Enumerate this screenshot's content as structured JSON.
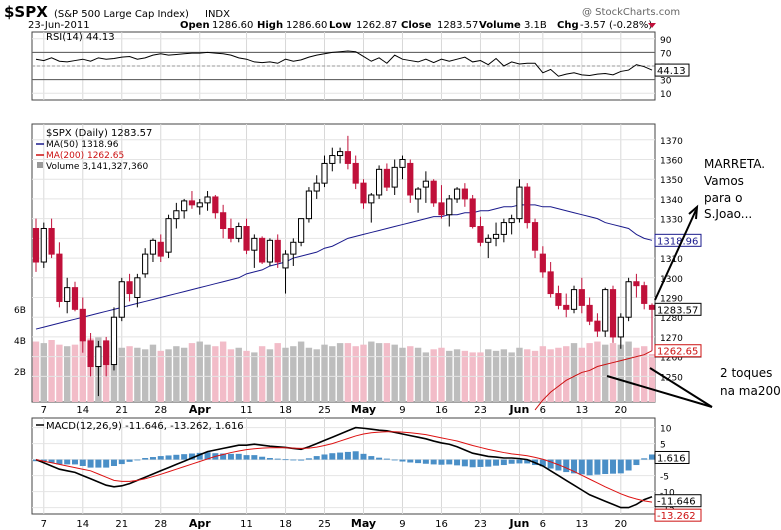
{
  "header": {
    "symbol": "$SPX",
    "name": "(S&P 500 Large Cap Index)",
    "exchange": "INDX",
    "date": "23-Jun-2011",
    "open_label": "Open",
    "open": "1286.60",
    "high_label": "High",
    "high": "1286.60",
    "low_label": "Low",
    "low": "1262.87",
    "close_label": "Close",
    "close": "1283.57",
    "volume_label": "Volume",
    "volume": "3.1B",
    "chg_label": "Chg",
    "chg": "-3.57 (-0.28%)",
    "watermark": "@ StockCharts.com"
  },
  "annotations": {
    "top_lines": [
      "MARRETA.",
      "Vamos",
      "para o",
      "S.Joao..."
    ],
    "bottom_lines": [
      "2 toques",
      "na ma200"
    ]
  },
  "chart_data": [
    {
      "type": "line",
      "panel": "rsi",
      "title": "RSI(14) 44.13",
      "ylim": [
        0,
        100
      ],
      "ticks": [
        10,
        30,
        50,
        70,
        90
      ],
      "ref_lines": [
        30,
        50,
        70
      ],
      "last_label": "44.13",
      "values": [
        60,
        58,
        62,
        57,
        56,
        58,
        60,
        57,
        62,
        60,
        61,
        63,
        64,
        60,
        62,
        66,
        68,
        66,
        67,
        68,
        69,
        69,
        70,
        69,
        68,
        66,
        62,
        60,
        56,
        55,
        56,
        54,
        60,
        57,
        59,
        63,
        66,
        68,
        70,
        71,
        72,
        71,
        64,
        57,
        62,
        54,
        66,
        60,
        58,
        56,
        60,
        55,
        60,
        57,
        60,
        63,
        56,
        58,
        52,
        61,
        50,
        56,
        53,
        54,
        54,
        40,
        45,
        35,
        38,
        40,
        37,
        36,
        38,
        39,
        37,
        42,
        44,
        52,
        49,
        44
      ]
    },
    {
      "type": "candlestick",
      "panel": "price",
      "title": "$SPX (Daily) 1283.57",
      "ylim": [
        1237,
        1378
      ],
      "ticks": [
        1250,
        1260,
        1270,
        1280,
        1290,
        1300,
        1310,
        1320,
        1330,
        1340,
        1350,
        1360,
        1370
      ],
      "overlays": [
        {
          "name": "MA(50) 1318.96",
          "color": "#1a1a8c",
          "last_label": "1318.96",
          "values": [
            1274,
            1275,
            1276,
            1277,
            1278,
            1279,
            1280,
            1281,
            1282,
            1283,
            1284,
            1285,
            1286,
            1287,
            1288,
            1289,
            1290,
            1291,
            1292,
            1293,
            1294,
            1295,
            1296,
            1297,
            1298,
            1299,
            1300,
            1302,
            1303,
            1304,
            1306,
            1307,
            1308,
            1310,
            1311,
            1312,
            1313,
            1315,
            1316,
            1318,
            1320,
            1321,
            1322,
            1323,
            1324,
            1325,
            1326,
            1327,
            1328,
            1329,
            1330,
            1331,
            1331,
            1332,
            1332,
            1333,
            1333,
            1334,
            1334,
            1335,
            1336,
            1336,
            1337,
            1337,
            1337,
            1336,
            1336,
            1335,
            1334,
            1333,
            1332,
            1331,
            1330,
            1328,
            1327,
            1326,
            1325,
            1322,
            1320,
            1319
          ]
        },
        {
          "name": "MA(200) 1262.65",
          "color": "#cc1111",
          "last_label": "1262.65",
          "values": [
            null,
            null,
            null,
            null,
            null,
            null,
            null,
            null,
            null,
            null,
            null,
            null,
            null,
            null,
            null,
            null,
            null,
            null,
            null,
            null,
            null,
            null,
            null,
            null,
            null,
            null,
            null,
            null,
            null,
            null,
            null,
            null,
            null,
            null,
            null,
            null,
            null,
            null,
            null,
            null,
            null,
            null,
            null,
            null,
            null,
            null,
            null,
            null,
            null,
            null,
            null,
            null,
            null,
            null,
            null,
            null,
            null,
            null,
            null,
            null,
            null,
            null,
            null,
            null,
            1233,
            1238,
            1242,
            1245,
            1248,
            1250,
            1252,
            1253,
            1255,
            1256,
            1257,
            1258,
            1259,
            1260,
            1261,
            1263
          ]
        }
      ],
      "last_label": "1283.57",
      "candles": [
        [
          1325,
          1330,
          1303,
          1308
        ],
        [
          1308,
          1328,
          1305,
          1325
        ],
        [
          1325,
          1330,
          1310,
          1312
        ],
        [
          1312,
          1318,
          1285,
          1288
        ],
        [
          1288,
          1300,
          1282,
          1295
        ],
        [
          1295,
          1298,
          1283,
          1284
        ],
        [
          1284,
          1290,
          1262,
          1268
        ],
        [
          1268,
          1272,
          1250,
          1255
        ],
        [
          1255,
          1268,
          1240,
          1265
        ],
        [
          1268,
          1270,
          1250,
          1256
        ],
        [
          1256,
          1285,
          1253,
          1280
        ],
        [
          1280,
          1300,
          1278,
          1298
        ],
        [
          1298,
          1302,
          1288,
          1292
        ],
        [
          1290,
          1302,
          1285,
          1300
        ],
        [
          1302,
          1315,
          1300,
          1312
        ],
        [
          1312,
          1320,
          1308,
          1319
        ],
        [
          1318,
          1322,
          1308,
          1311
        ],
        [
          1313,
          1332,
          1310,
          1330
        ],
        [
          1330,
          1338,
          1325,
          1334
        ],
        [
          1334,
          1340,
          1330,
          1339
        ],
        [
          1339,
          1344,
          1335,
          1337
        ],
        [
          1336,
          1340,
          1332,
          1338
        ],
        [
          1338,
          1344,
          1334,
          1341
        ],
        [
          1341,
          1342,
          1330,
          1333
        ],
        [
          1333,
          1337,
          1320,
          1325
        ],
        [
          1325,
          1330,
          1318,
          1320
        ],
        [
          1320,
          1328,
          1318,
          1326
        ],
        [
          1326,
          1330,
          1312,
          1314
        ],
        [
          1314,
          1322,
          1305,
          1320
        ],
        [
          1320,
          1321,
          1307,
          1308
        ],
        [
          1308,
          1320,
          1306,
          1319
        ],
        [
          1319,
          1322,
          1305,
          1308
        ],
        [
          1305,
          1314,
          1292,
          1312
        ],
        [
          1312,
          1320,
          1306,
          1318
        ],
        [
          1318,
          1330,
          1316,
          1330
        ],
        [
          1330,
          1346,
          1328,
          1344
        ],
        [
          1344,
          1352,
          1340,
          1348
        ],
        [
          1348,
          1362,
          1346,
          1358
        ],
        [
          1358,
          1366,
          1354,
          1362
        ],
        [
          1362,
          1366,
          1358,
          1364
        ],
        [
          1364,
          1372,
          1355,
          1358
        ],
        [
          1358,
          1362,
          1345,
          1348
        ],
        [
          1348,
          1350,
          1335,
          1338
        ],
        [
          1338,
          1343,
          1328,
          1342
        ],
        [
          1342,
          1357,
          1340,
          1355
        ],
        [
          1355,
          1358,
          1344,
          1346
        ],
        [
          1346,
          1360,
          1342,
          1356
        ],
        [
          1356,
          1362,
          1350,
          1360
        ],
        [
          1358,
          1360,
          1338,
          1342
        ],
        [
          1340,
          1346,
          1333,
          1345
        ],
        [
          1346,
          1354,
          1338,
          1349
        ],
        [
          1349,
          1350,
          1336,
          1338
        ],
        [
          1338,
          1347,
          1330,
          1332
        ],
        [
          1332,
          1342,
          1326,
          1340
        ],
        [
          1340,
          1346,
          1338,
          1345
        ],
        [
          1345,
          1348,
          1336,
          1340
        ],
        [
          1340,
          1342,
          1325,
          1326
        ],
        [
          1326,
          1331,
          1316,
          1318
        ],
        [
          1318,
          1322,
          1310,
          1320
        ],
        [
          1320,
          1328,
          1316,
          1322
        ],
        [
          1322,
          1330,
          1318,
          1328
        ],
        [
          1328,
          1332,
          1322,
          1330
        ],
        [
          1330,
          1350,
          1328,
          1346
        ],
        [
          1346,
          1348,
          1325,
          1328
        ],
        [
          1328,
          1330,
          1310,
          1314
        ],
        [
          1312,
          1316,
          1300,
          1303
        ],
        [
          1303,
          1308,
          1290,
          1292
        ],
        [
          1292,
          1296,
          1284,
          1286
        ],
        [
          1286,
          1292,
          1280,
          1284
        ],
        [
          1284,
          1296,
          1282,
          1294
        ],
        [
          1294,
          1300,
          1282,
          1286
        ],
        [
          1286,
          1290,
          1276,
          1278
        ],
        [
          1278,
          1282,
          1270,
          1273
        ],
        [
          1273,
          1295,
          1270,
          1294
        ],
        [
          1294,
          1296,
          1267,
          1270
        ],
        [
          1270,
          1282,
          1264,
          1280
        ],
        [
          1280,
          1300,
          1278,
          1298
        ],
        [
          1298,
          1302,
          1290,
          1296
        ],
        [
          1296,
          1298,
          1284,
          1287
        ],
        [
          1286,
          1287,
          1263,
          1284
        ]
      ]
    },
    {
      "type": "bar",
      "panel": "volume",
      "title": "Volume 3,141,327,360",
      "ticks": [
        "2B",
        "4B",
        "6B"
      ],
      "last_label": "3141327",
      "values": [
        3.9,
        3.8,
        4.0,
        3.7,
        3.6,
        3.7,
        3.9,
        4.1,
        4.2,
        3.7,
        3.9,
        3.5,
        3.6,
        3.5,
        3.4,
        3.7,
        3.3,
        3.4,
        3.6,
        3.5,
        3.8,
        3.9,
        3.7,
        3.6,
        3.9,
        3.4,
        3.5,
        3.3,
        3.2,
        3.6,
        3.4,
        3.8,
        3.5,
        3.6,
        3.9,
        3.5,
        3.4,
        3.7,
        3.6,
        3.8,
        3.8,
        3.6,
        3.7,
        3.9,
        3.8,
        3.8,
        3.7,
        3.5,
        3.6,
        3.5,
        3.2,
        3.4,
        3.5,
        3.3,
        3.4,
        3.3,
        3.2,
        3.2,
        3.4,
        3.3,
        3.4,
        3.2,
        3.5,
        3.4,
        3.3,
        3.6,
        3.4,
        3.5,
        3.6,
        3.8,
        3.5,
        3.8,
        3.9,
        3.7,
        3.8,
        3.7,
        3.9,
        3.5,
        3.6,
        3.1
      ]
    },
    {
      "type": "line",
      "panel": "macd",
      "title": "MACD(12,26,9) -11.646, -13.262, 1.616",
      "ylim": [
        -17,
        13
      ],
      "ticks": [
        -15,
        -10,
        -5,
        0,
        5,
        10
      ],
      "series": [
        {
          "name": "MACD",
          "color": "#000000",
          "last_label": "-11.646",
          "values": [
            0,
            -1,
            -2,
            -3,
            -3.5,
            -4,
            -5,
            -6,
            -7,
            -8,
            -8.5,
            -8.2,
            -7.5,
            -6.5,
            -5.5,
            -4.5,
            -3.5,
            -2.5,
            -1.5,
            -0.5,
            0.5,
            1.5,
            2.5,
            3,
            3.5,
            4,
            4.5,
            4.5,
            4.8,
            4.5,
            4.2,
            4,
            3.8,
            3.5,
            3.2,
            4,
            5,
            6,
            7,
            8,
            9,
            10,
            9.8,
            9.5,
            9.2,
            9,
            8.5,
            8,
            7.5,
            7,
            6.5,
            5.8,
            5.2,
            4.8,
            4,
            3,
            2,
            1.5,
            1,
            0.8,
            0.5,
            0.5,
            0.3,
            0,
            -1,
            -2,
            -3.5,
            -5,
            -6.5,
            -8,
            -9.5,
            -11,
            -12,
            -13,
            -14,
            -15,
            -15,
            -14,
            -12.5,
            -11.6
          ]
        },
        {
          "name": "Signal",
          "color": "#dd1111",
          "last_label": "-13.262",
          "values": [
            0,
            -0.5,
            -1,
            -1.5,
            -2,
            -2.5,
            -3,
            -3.5,
            -4.5,
            -5.5,
            -6.5,
            -6.8,
            -6.8,
            -6.5,
            -6,
            -5.3,
            -4.6,
            -3.8,
            -3,
            -2.2,
            -1.4,
            -0.6,
            0.2,
            1,
            1.6,
            2.2,
            2.7,
            3.1,
            3.4,
            3.6,
            3.7,
            3.7,
            3.7,
            3.6,
            3.5,
            3.6,
            3.9,
            4.4,
            5,
            5.8,
            6.6,
            7.4,
            8,
            8.4,
            8.6,
            8.7,
            8.7,
            8.6,
            8.4,
            8.1,
            7.8,
            7.3,
            6.8,
            6.3,
            5.8,
            5.1,
            4.4,
            3.8,
            3.2,
            2.7,
            2.2,
            1.8,
            1.5,
            1.2,
            0.7,
            0.1,
            -0.7,
            -1.6,
            -2.6,
            -3.7,
            -4.9,
            -6.1,
            -7.3,
            -8.5,
            -9.6,
            -10.7,
            -11.6,
            -12.3,
            -12.9,
            -13.3
          ]
        }
      ],
      "histogram": [
        -0.5,
        -0.5,
        -1,
        -1.5,
        -1.5,
        -1.5,
        -2,
        -2.5,
        -2.5,
        -2.5,
        -2,
        -1.4,
        -0.7,
        0,
        0.5,
        0.8,
        1.1,
        1.3,
        1.5,
        1.7,
        1.9,
        2.1,
        2.3,
        2,
        1.9,
        1.8,
        1.8,
        1.4,
        1.4,
        0.9,
        0.5,
        0.3,
        0.1,
        -0.1,
        -0.3,
        0.4,
        1.1,
        1.6,
        2,
        2.2,
        2.4,
        2.6,
        1.8,
        1.1,
        0.6,
        0.3,
        -0.2,
        -0.6,
        -0.9,
        -1.1,
        -1.3,
        -1.5,
        -1.6,
        -1.5,
        -1.8,
        -2.1,
        -2.4,
        -2.3,
        -2.2,
        -1.9,
        -1.7,
        -1.3,
        -1.2,
        -1.2,
        -1.7,
        -2.1,
        -2.8,
        -3.4,
        -3.9,
        -4.3,
        -4.6,
        -4.9,
        -4.7,
        -4.5,
        -4.4,
        -4.3,
        -3.4,
        -1.7,
        0.4,
        1.6
      ],
      "hist_last_label": "1.616"
    }
  ],
  "x_axis": {
    "labels": [
      {
        "text": "7",
        "i": 1,
        "bold": false
      },
      {
        "text": "14",
        "i": 6,
        "bold": false
      },
      {
        "text": "21",
        "i": 11,
        "bold": false
      },
      {
        "text": "28",
        "i": 16,
        "bold": false
      },
      {
        "text": "Apr",
        "i": 21,
        "bold": true
      },
      {
        "text": "11",
        "i": 27,
        "bold": false
      },
      {
        "text": "18",
        "i": 32,
        "bold": false
      },
      {
        "text": "25",
        "i": 37,
        "bold": false
      },
      {
        "text": "May",
        "i": 42,
        "bold": true
      },
      {
        "text": "9",
        "i": 47,
        "bold": false
      },
      {
        "text": "16",
        "i": 52,
        "bold": false
      },
      {
        "text": "23",
        "i": 57,
        "bold": false
      },
      {
        "text": "Jun",
        "i": 62,
        "bold": true
      },
      {
        "text": "6",
        "i": 65,
        "bold": false
      },
      {
        "text": "13",
        "i": 70,
        "bold": false
      },
      {
        "text": "20",
        "i": 75,
        "bold": false
      }
    ]
  }
}
